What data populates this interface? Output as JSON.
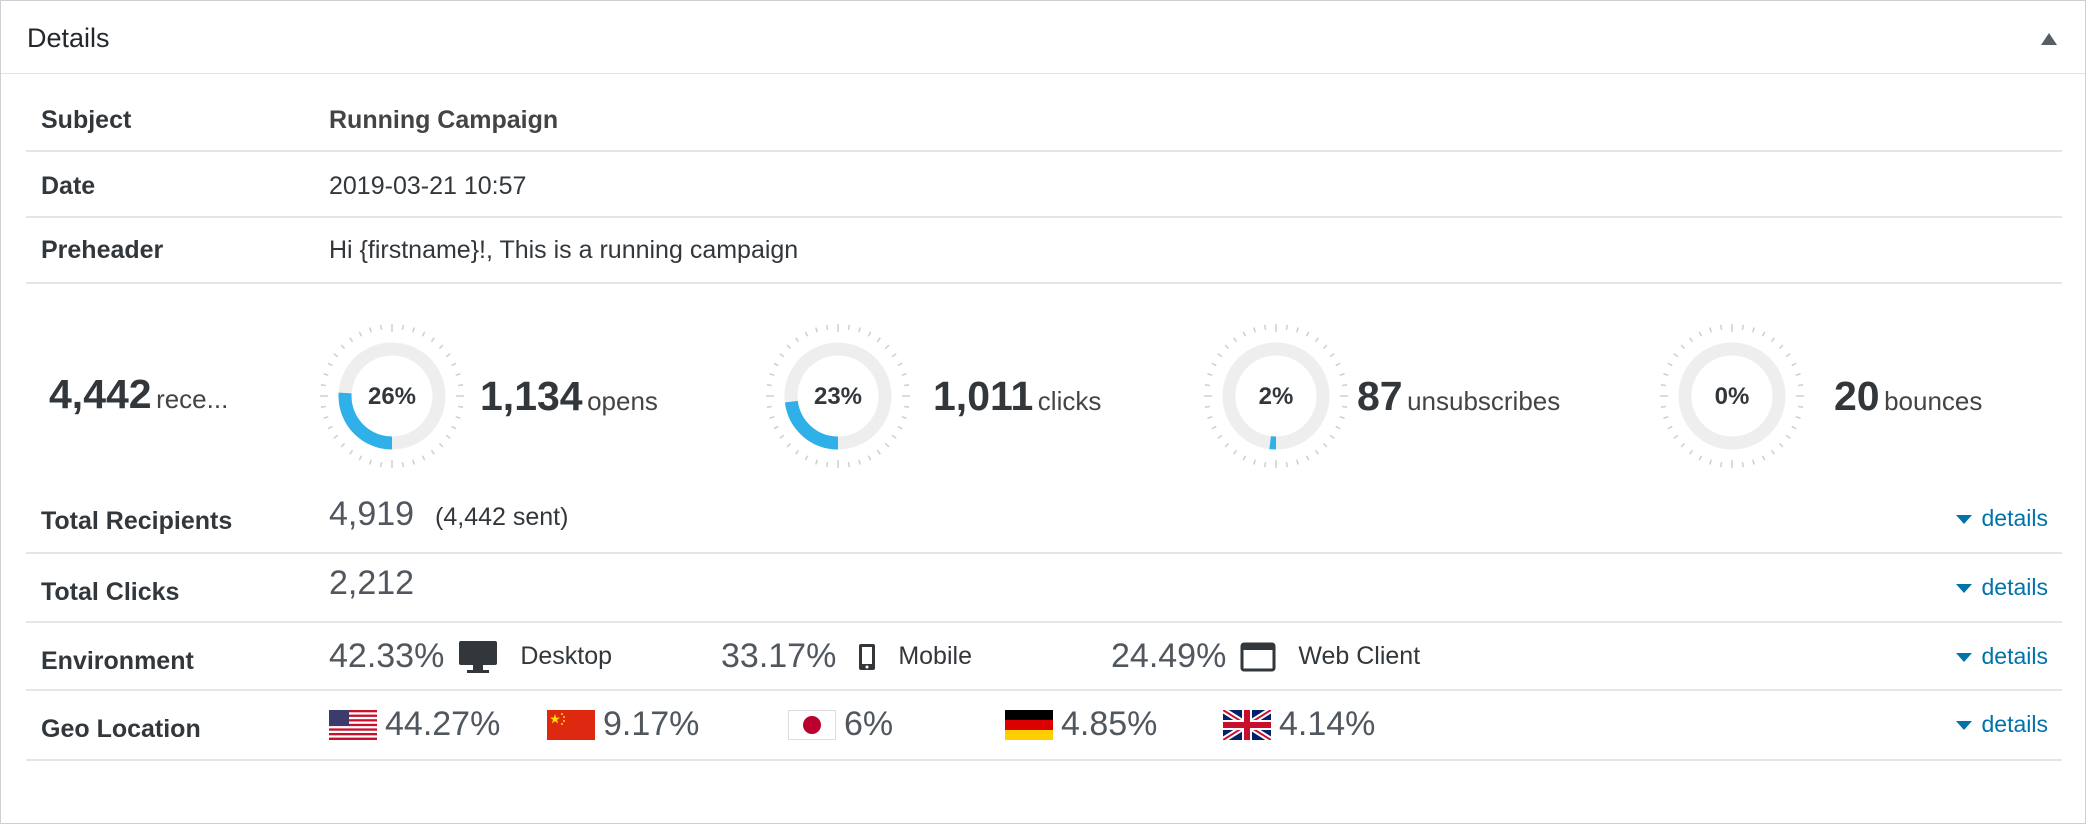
{
  "panel": {
    "title": "Details"
  },
  "rows": {
    "subject": {
      "label": "Subject",
      "value": "Running Campaign"
    },
    "date": {
      "label": "Date",
      "value": "2019-03-21 10:57"
    },
    "preheader": {
      "label": "Preheader",
      "value": "Hi {firstname}!, This is a running campaign"
    }
  },
  "stats": {
    "recipients": {
      "value": "4,442",
      "label": "rece..."
    },
    "opens": {
      "percent_label": "26%",
      "percent": 26,
      "value": "1,134",
      "label": "opens"
    },
    "clicks": {
      "percent_label": "23%",
      "percent": 23,
      "value": "1,011",
      "label": "clicks"
    },
    "unsubscribes": {
      "percent_label": "2%",
      "percent": 2,
      "value": "87",
      "label": "unsubscribes"
    },
    "bounces": {
      "percent_label": "0%",
      "percent": 0,
      "value": "20",
      "label": "bounces"
    }
  },
  "total_recipients": {
    "label": "Total Recipients",
    "value": "4,919",
    "sent": "(4,442 sent)",
    "link": "details"
  },
  "total_clicks": {
    "label": "Total Clicks",
    "value": "2,212",
    "link": "details"
  },
  "environment": {
    "label": "Environment",
    "link": "details",
    "items": [
      {
        "percent": "42.33%",
        "name": "Desktop",
        "icon": "desktop-icon"
      },
      {
        "percent": "33.17%",
        "name": "Mobile",
        "icon": "mobile-icon"
      },
      {
        "percent": "24.49%",
        "name": "Web Client",
        "icon": "browser-window-icon"
      }
    ]
  },
  "geo": {
    "label": "Geo Location",
    "link": "details",
    "items": [
      {
        "percent": "44.27%",
        "flag": "us-flag-icon"
      },
      {
        "percent": "9.17%",
        "flag": "china-flag-icon"
      },
      {
        "percent": "6%",
        "flag": "japan-flag-icon"
      },
      {
        "percent": "4.85%",
        "flag": "germany-flag-icon"
      },
      {
        "percent": "4.14%",
        "flag": "uk-flag-icon"
      }
    ]
  },
  "colors": {
    "accent": "#2fb0e9",
    "link": "#0073aa",
    "ring_bg": "#eeeeee"
  }
}
